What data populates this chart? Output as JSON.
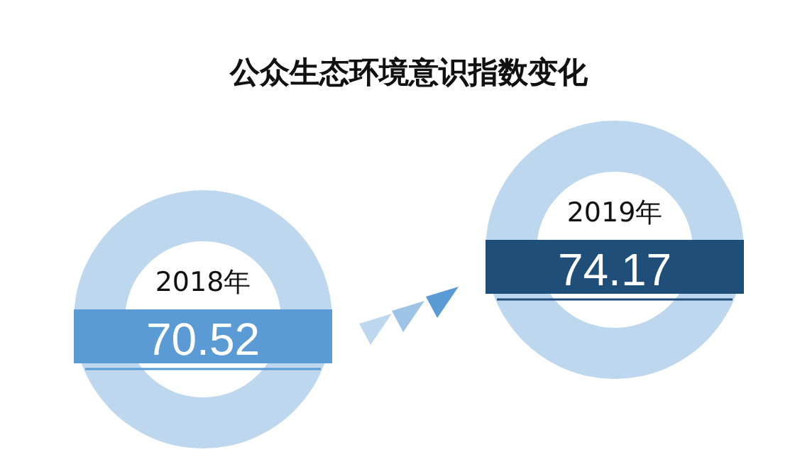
{
  "chart_data": {
    "type": "other",
    "title": "公众生态环境意识指数变化",
    "categories": [
      "2018年",
      "2019年"
    ],
    "values": [
      70.52,
      74.17
    ],
    "colors": [
      "#5b9bd5",
      "#1f4e79"
    ],
    "data_labels": true
  }
}
